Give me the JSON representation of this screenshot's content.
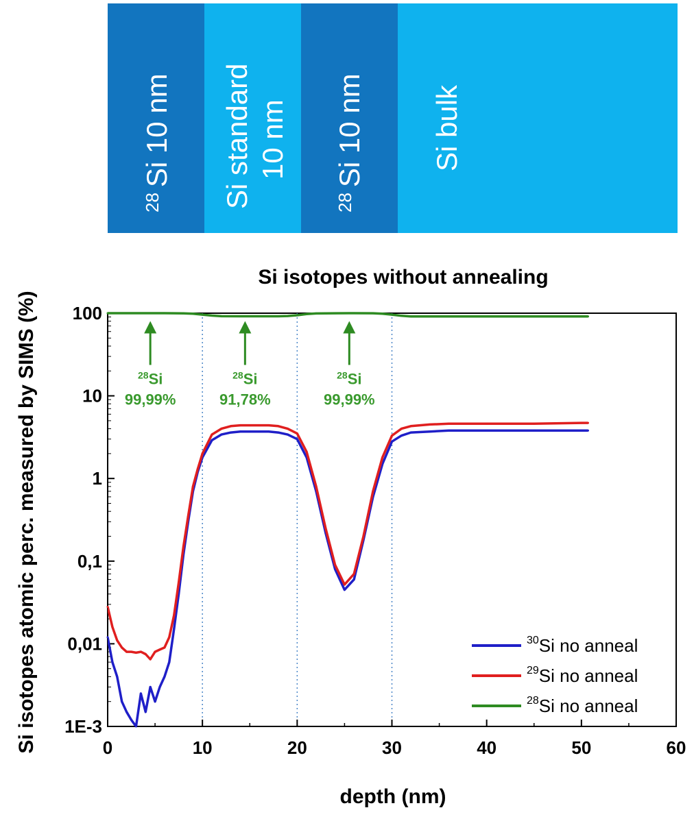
{
  "layer_stack": [
    {
      "iso": "28",
      "label": "Si 10 nm",
      "color": "#1275bf"
    },
    {
      "label_line1": "Si standard",
      "label_line2": "10 nm",
      "color": "#0fb2ee"
    },
    {
      "iso": "28",
      "label": "Si 10 nm",
      "color": "#1275bf"
    },
    {
      "label": "Si bulk",
      "color": "#0fb2ee"
    }
  ],
  "chart_data": {
    "type": "line",
    "title": "Si isotopes without annealing",
    "xlabel": "depth (nm)",
    "ylabel": "Si isotopes atomic perc. measured by SIMS (%)",
    "xlim": [
      0,
      60
    ],
    "ylim": [
      0.001,
      100
    ],
    "yscale": "log",
    "xticks": [
      0,
      10,
      20,
      30,
      40,
      50,
      60
    ],
    "xtick_labels": [
      "0",
      "10",
      "20",
      "30",
      "40",
      "50",
      "60"
    ],
    "yticks": [
      0.001,
      0.01,
      0.1,
      1,
      10,
      100
    ],
    "ytick_labels": [
      "1E-3",
      "0,01",
      "0,1",
      "1",
      "10",
      "100"
    ],
    "vlines": [
      10,
      20,
      30
    ],
    "grid": false,
    "legend_position": "bottom-right",
    "series": [
      {
        "iso": "30",
        "name": "Si no anneal",
        "color": "#1f1fc8",
        "x": [
          0,
          0.5,
          1,
          1.5,
          2,
          2.5,
          3,
          3.5,
          4,
          4.5,
          5,
          5.5,
          6,
          6.5,
          7,
          7.5,
          8,
          8.5,
          9,
          9.5,
          10,
          11,
          12,
          13,
          14,
          15,
          16,
          17,
          18,
          19,
          20,
          21,
          22,
          23,
          24,
          25,
          26,
          27,
          28,
          29,
          30,
          31,
          32,
          34,
          36,
          40,
          45,
          50,
          50.7
        ],
        "y": [
          0.012,
          0.006,
          0.004,
          0.002,
          0.0015,
          0.0012,
          0.001,
          0.0025,
          0.0015,
          0.003,
          0.002,
          0.003,
          0.004,
          0.006,
          0.015,
          0.04,
          0.12,
          0.3,
          0.7,
          1.2,
          1.8,
          2.9,
          3.4,
          3.6,
          3.7,
          3.7,
          3.7,
          3.7,
          3.6,
          3.4,
          3.0,
          1.8,
          0.7,
          0.22,
          0.08,
          0.045,
          0.06,
          0.18,
          0.6,
          1.5,
          2.8,
          3.3,
          3.6,
          3.7,
          3.8,
          3.8,
          3.8,
          3.8,
          3.8
        ]
      },
      {
        "iso": "29",
        "name": "Si no anneal",
        "color": "#e01f1f",
        "x": [
          0,
          0.5,
          1,
          1.5,
          2,
          2.5,
          3,
          3.5,
          4,
          4.5,
          5,
          5.5,
          6,
          6.5,
          7,
          7.5,
          8,
          8.5,
          9,
          9.5,
          10,
          11,
          12,
          13,
          14,
          15,
          16,
          17,
          18,
          19,
          20,
          21,
          22,
          23,
          24,
          25,
          26,
          27,
          28,
          29,
          30,
          31,
          32,
          34,
          36,
          40,
          45,
          50,
          50.7
        ],
        "y": [
          0.028,
          0.016,
          0.011,
          0.009,
          0.008,
          0.008,
          0.0078,
          0.008,
          0.0075,
          0.0065,
          0.008,
          0.0085,
          0.009,
          0.012,
          0.022,
          0.055,
          0.15,
          0.35,
          0.8,
          1.3,
          2.0,
          3.4,
          4.0,
          4.3,
          4.4,
          4.4,
          4.4,
          4.4,
          4.3,
          4.0,
          3.5,
          2.1,
          0.8,
          0.25,
          0.09,
          0.052,
          0.07,
          0.2,
          0.7,
          1.8,
          3.3,
          4.0,
          4.3,
          4.5,
          4.6,
          4.6,
          4.6,
          4.7,
          4.7
        ]
      },
      {
        "iso": "28",
        "name": "Si no anneal",
        "color": "#2e8b22",
        "x": [
          0,
          2,
          4,
          6,
          8,
          9,
          10,
          11,
          12,
          14,
          16,
          18,
          19,
          20,
          21,
          22,
          24,
          26,
          28,
          29,
          30,
          31,
          32,
          36,
          40,
          45,
          50,
          50.7
        ],
        "y": [
          99.99,
          99.99,
          99.99,
          99.99,
          99.7,
          98.5,
          96,
          93.5,
          92,
          91.8,
          91.8,
          91.8,
          92.5,
          94.5,
          97.5,
          99.3,
          99.9,
          99.99,
          99.8,
          98.5,
          96,
          93,
          91.5,
          91.2,
          91.2,
          91.2,
          91.2,
          91.2
        ]
      }
    ],
    "annotations": [
      {
        "iso": "28",
        "element": "Si",
        "value": "99,99%",
        "x": 4.5
      },
      {
        "iso": "28",
        "element": "Si",
        "value": "91,78%",
        "x": 14.5
      },
      {
        "iso": "28",
        "element": "Si",
        "value": "99,99%",
        "x": 25.5
      }
    ]
  }
}
